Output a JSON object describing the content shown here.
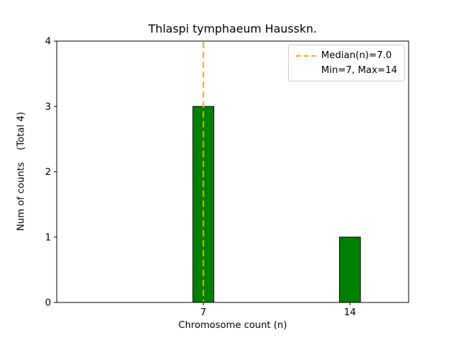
{
  "chart_data": {
    "type": "bar",
    "title": "Thlaspi tymphaeum Hausskn.",
    "xlabel": "Chromosome count (n)",
    "ylabel": "Num of counts    (Total 4)",
    "categories": [
      7,
      14
    ],
    "values": [
      3,
      1
    ],
    "xlim": [
      0,
      16.8
    ],
    "ylim": [
      0,
      4
    ],
    "yticks": [
      0,
      1,
      2,
      3,
      4
    ],
    "xticks": [
      "7",
      "14"
    ],
    "bar_width": 1.0,
    "bar_color": "#008000",
    "bar_edge_color": "#000000",
    "grid": false,
    "median_line": {
      "value": 7.0,
      "color": "#FFA500",
      "style": "dashed"
    },
    "legend": {
      "position": "upper right",
      "entries": [
        {
          "label": "Median(n)=7.0",
          "sample": "dashed-line"
        },
        {
          "label": "Min=7, Max=14",
          "sample": "none"
        }
      ]
    }
  }
}
